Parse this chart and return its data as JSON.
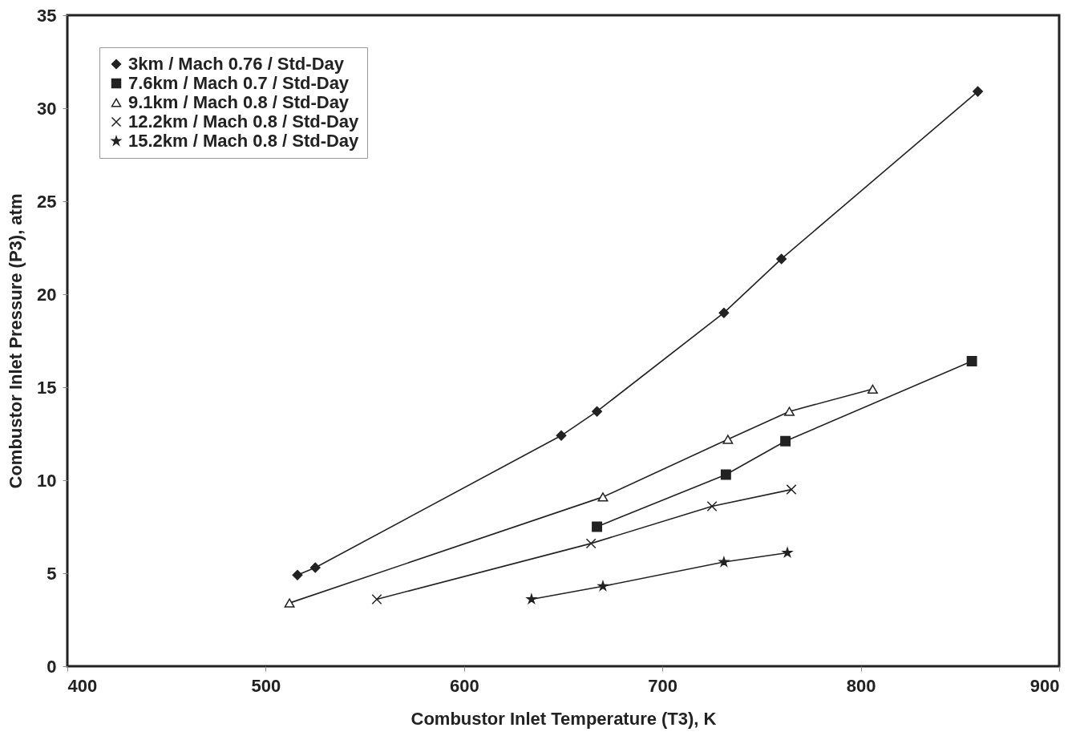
{
  "chart_data": {
    "type": "line",
    "xlabel": "Combustor Inlet Temperature (T3), K",
    "ylabel": "Combustor Inlet Pressure (P3), atm",
    "xlim": [
      400,
      900
    ],
    "xticks": [
      400,
      500,
      600,
      700,
      800,
      900
    ],
    "ylim": [
      0,
      35
    ],
    "yticks": [
      0,
      5,
      10,
      15,
      20,
      25,
      30,
      35
    ],
    "grid": false,
    "legend": "top left",
    "line_style": "solid",
    "series": [
      {
        "name": "3km / Mach 0.76 / Std-Day",
        "color": "#222222",
        "marker": "diamond",
        "x": [
          516,
          525,
          649,
          667,
          731,
          760,
          859
        ],
        "values": [
          4.9,
          5.3,
          12.4,
          13.7,
          19.0,
          21.9,
          30.9
        ]
      },
      {
        "name": "7.6km / Mach 0.7 / Std-Day",
        "color": "#222222",
        "marker": "square",
        "x": [
          667,
          732,
          762,
          856
        ],
        "values": [
          7.5,
          10.3,
          12.1,
          16.4
        ]
      },
      {
        "name": "9.1km / Mach 0.8 / Std-Day",
        "color": "#222222",
        "marker": "triangle",
        "x": [
          512,
          670,
          733,
          764,
          806
        ],
        "values": [
          3.4,
          9.1,
          12.2,
          13.7,
          14.9
        ]
      },
      {
        "name": "12.2km / Mach 0.8 / Std-Day",
        "color": "#222222",
        "marker": "cross",
        "x": [
          556,
          664,
          725,
          765
        ],
        "values": [
          3.6,
          6.6,
          8.6,
          9.5
        ]
      },
      {
        "name": "15.2km / Mach 0.8 / Std-Day",
        "color": "#222222",
        "marker": "star",
        "x": [
          634,
          670,
          731,
          763
        ],
        "values": [
          3.6,
          4.3,
          5.6,
          6.1
        ]
      }
    ]
  }
}
